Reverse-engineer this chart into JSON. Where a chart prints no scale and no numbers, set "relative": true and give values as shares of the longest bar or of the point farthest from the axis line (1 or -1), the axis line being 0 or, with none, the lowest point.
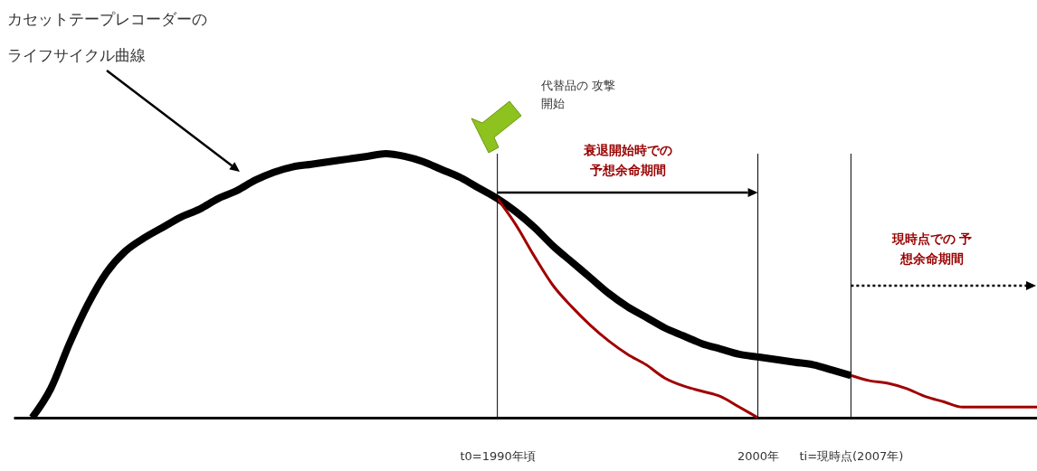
{
  "chart_data": {
    "type": "line",
    "relative": true,
    "title": "カセットテープレコーダーのライフサイクル曲線",
    "tick_labels": "x",
    "categories": [
      null,
      null,
      null,
      null,
      null,
      null,
      null,
      null,
      null,
      null,
      null,
      null,
      null,
      null,
      null,
      null,
      null,
      null,
      null,
      null,
      null,
      null,
      null,
      null,
      null,
      null,
      "t0=1990年頃",
      null,
      null,
      null,
      null,
      null,
      null,
      null,
      null,
      null,
      null,
      null,
      null,
      null,
      "2000年",
      null,
      null,
      null,
      null,
      "ti=現時点(2007年)",
      null,
      null,
      null,
      null,
      null,
      null,
      null,
      null,
      null,
      null
    ],
    "series": [
      {
        "color": "#000000",
        "values": [
          null,
          0,
          0.11,
          0.28,
          0.43,
          0.55,
          0.63,
          0.68,
          0.72,
          0.76,
          0.79,
          0.83,
          0.86,
          0.9,
          0.93,
          0.95,
          0.96,
          0.97,
          0.98,
          0.99,
          1,
          0.99,
          0.97,
          0.94,
          0.91,
          0.87,
          0.83,
          0.78,
          0.72,
          0.65,
          0.59,
          0.53,
          0.47,
          0.42,
          0.38,
          0.34,
          0.31,
          0.28,
          0.26,
          0.24,
          0.23,
          0.22,
          0.21,
          0.2,
          0.18,
          0.16,
          null,
          null,
          null,
          null,
          null,
          null,
          null,
          null,
          null,
          null
        ]
      },
      {
        "color": "#a00000",
        "values": [
          null,
          null,
          null,
          null,
          null,
          null,
          null,
          null,
          null,
          null,
          null,
          null,
          null,
          null,
          null,
          null,
          null,
          null,
          null,
          null,
          null,
          null,
          null,
          null,
          null,
          null,
          0.83,
          0.73,
          0.61,
          0.5,
          0.42,
          0.35,
          0.29,
          0.24,
          0.2,
          0.15,
          0.12,
          0.1,
          0.08,
          0.04,
          0,
          null,
          null,
          null,
          null,
          null,
          null,
          null,
          null,
          null,
          null,
          null,
          null,
          null,
          null,
          null
        ]
      },
      {
        "color": "#a00000",
        "values": [
          null,
          null,
          null,
          null,
          null,
          null,
          null,
          null,
          null,
          null,
          null,
          null,
          null,
          null,
          null,
          null,
          null,
          null,
          null,
          null,
          null,
          null,
          null,
          null,
          null,
          null,
          null,
          null,
          null,
          null,
          null,
          null,
          null,
          null,
          null,
          null,
          null,
          null,
          null,
          null,
          null,
          null,
          null,
          null,
          null,
          0.16,
          0.14,
          0.13,
          0.11,
          0.08,
          0.06,
          0.04,
          0.04,
          0.04,
          0.04,
          0.04
        ]
      }
    ],
    "ref_lines": [
      {
        "axis": "x",
        "value": "t0=1990年頃"
      },
      {
        "axis": "x",
        "value": "2000年"
      },
      {
        "axis": "x",
        "value": "ti=現時点(2007年)"
      }
    ],
    "annotations": [
      "代替品の 攻撃開始",
      "衰退開始時での予想余命期間",
      "現時点での 予想余命期間"
    ]
  }
}
